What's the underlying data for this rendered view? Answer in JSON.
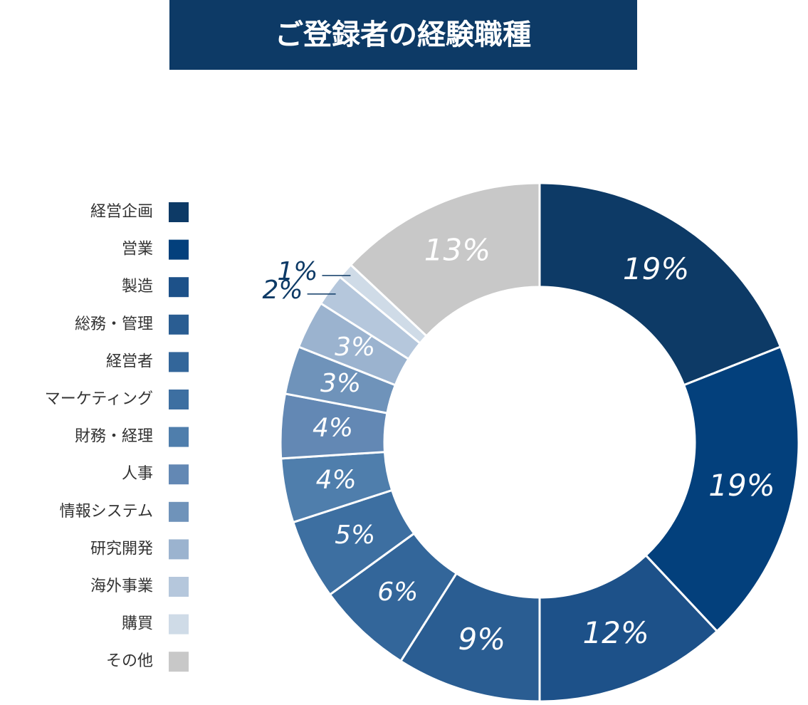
{
  "chart_data": {
    "type": "donut",
    "title": "ご登録者の経験職種",
    "categories": [
      "経営企画",
      "営業",
      "製造",
      "総務・管理",
      "経営者",
      "マーケティング",
      "財務・経理",
      "人事",
      "情報システム",
      "研究開発",
      "海外事業",
      "購買",
      "その他"
    ],
    "values": [
      19,
      19,
      12,
      9,
      6,
      5,
      4,
      4,
      3,
      3,
      2,
      1,
      13
    ],
    "value_labels": [
      "19%",
      "19%",
      "12%",
      "9%",
      "6%",
      "5%",
      "4%",
      "4%",
      "3%",
      "3%",
      "2%",
      "1%",
      "13%"
    ],
    "colors": [
      "#0d3a66",
      "#03407c",
      "#1d5189",
      "#2a5d92",
      "#33669a",
      "#3d6fa1",
      "#4f7eac",
      "#6388b4",
      "#6f93ba",
      "#9bb3cf",
      "#b5c7dc",
      "#cfdbe7",
      "#c8c8c8"
    ]
  }
}
